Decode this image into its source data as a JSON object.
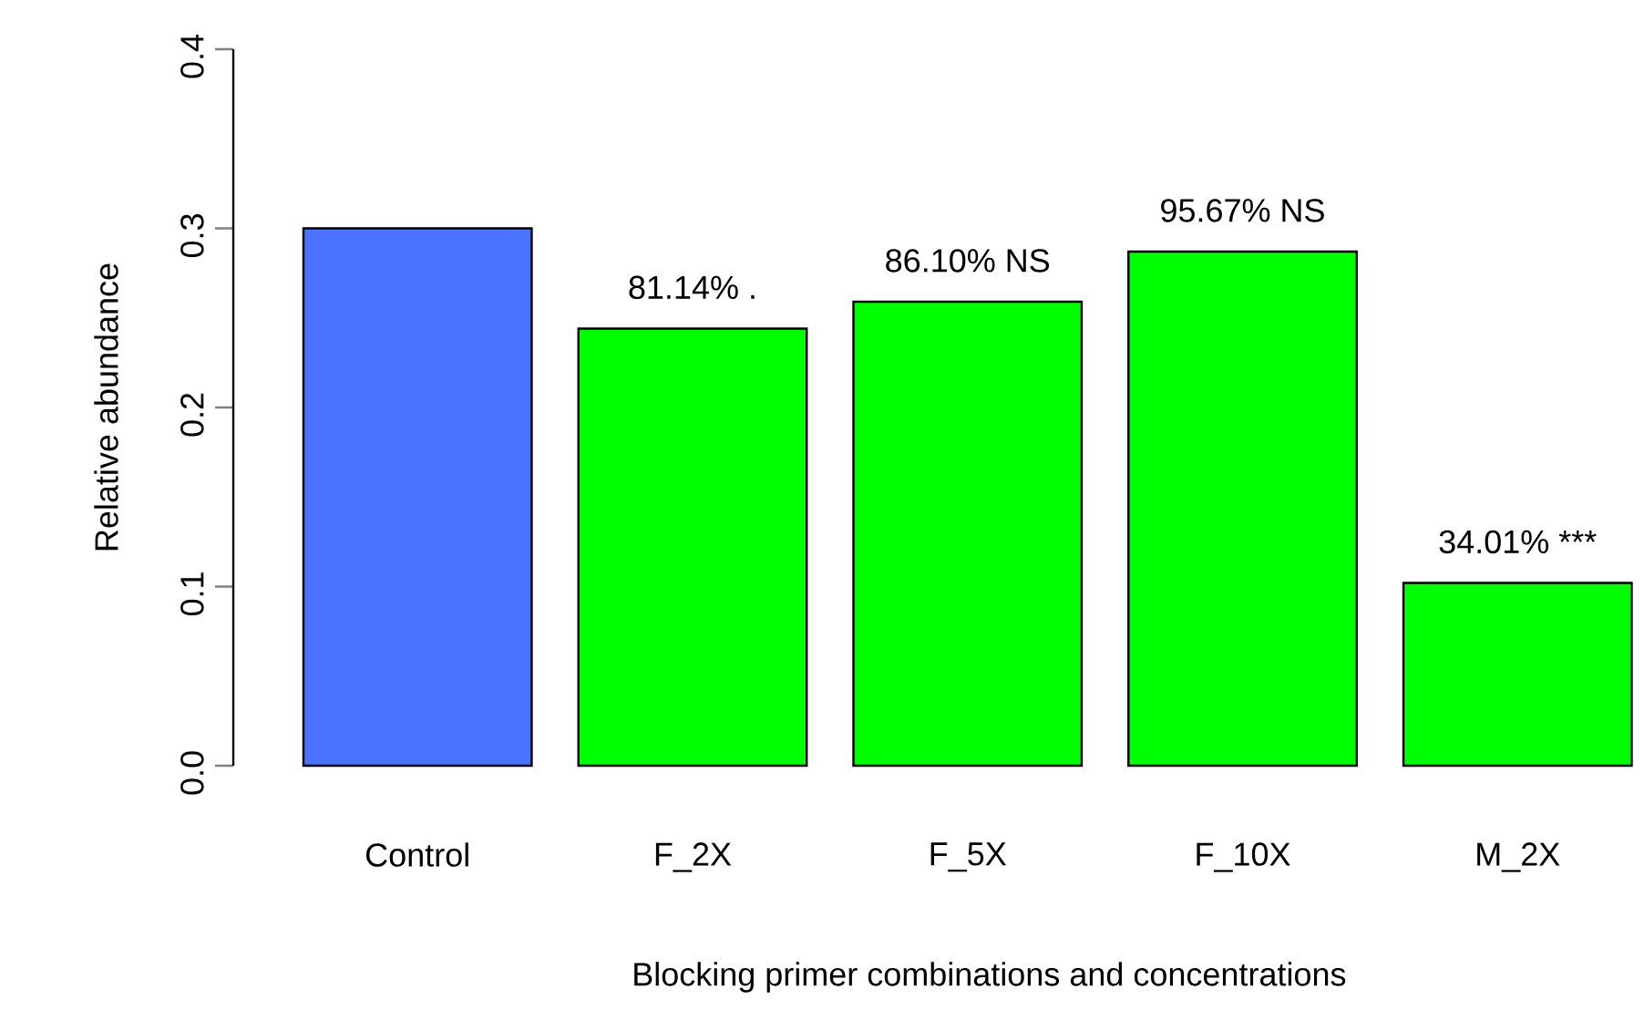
{
  "chart_data": {
    "type": "bar",
    "xlabel": "Blocking primer combinations and concentrations",
    "ylabel": "Relative abundance",
    "categories": [
      "Control",
      "F_2X",
      "F_5X",
      "F_10X",
      "M_2X"
    ],
    "values": [
      0.3,
      0.244,
      0.259,
      0.287,
      0.102
    ],
    "colors": [
      "#4a74ff",
      "#00ff00",
      "#00ff00",
      "#00ff00",
      "#00ff00"
    ],
    "ylim": [
      0,
      0.4
    ],
    "yticks": [
      {
        "value": 0,
        "label": "0.0"
      },
      0.1,
      0.2,
      0.3,
      0.4
    ],
    "annotations": [
      {
        "text": "81.14% .",
        "x": "F_2X",
        "y": 0.244
      },
      {
        "text": "86.10% NS",
        "x": "F_5X",
        "y": 0.259
      },
      {
        "text": "95.67% NS",
        "x": "F_10X",
        "y": 0.287
      },
      {
        "text": "34.01% ***",
        "x": "M_2X",
        "y": 0.102
      }
    ],
    "grid": false
  }
}
